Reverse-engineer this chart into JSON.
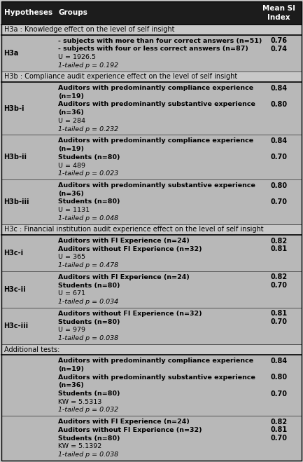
{
  "figsize": [
    4.33,
    6.59
  ],
  "dpi": 100,
  "header_bg": "#1c1c1c",
  "section_bg": "#c8c8c8",
  "data_bg": "#b8b8b8",
  "fig_bg": "#c8c8c8",
  "rows": [
    {
      "type": "header",
      "col1": "Hypotheses",
      "col2": "Groups",
      "col3": "Mean SI\nIndex"
    },
    {
      "type": "section",
      "text": "H3a : Knowledge effect on the level of self insight"
    },
    {
      "type": "data",
      "hyp": "H3a",
      "lines": [
        [
          "- subjects with more than four correct answers (n=51)",
          true,
          false
        ],
        [
          "- subjects with four or less correct answers (n=87)",
          true,
          false
        ],
        [
          "U = 1926.5",
          false,
          false
        ],
        [
          "1-tailed p = 0.192",
          false,
          true
        ]
      ],
      "values": [
        "0.76",
        "0.74",
        "",
        ""
      ]
    },
    {
      "type": "section",
      "text": "H3b : Compliance audit experience effect on the level of self insight"
    },
    {
      "type": "data",
      "hyp": "H3b-i",
      "lines": [
        [
          "Auditors with predominantly compliance experience",
          true,
          false
        ],
        [
          "(n=19)",
          true,
          false
        ],
        [
          "Auditors with predominantly substantive experience",
          true,
          false
        ],
        [
          "(n=36)",
          true,
          false
        ],
        [
          "U = 284",
          false,
          false
        ],
        [
          "1-tailed p = 0.232",
          false,
          true
        ]
      ],
      "values": [
        "0.84",
        "",
        "0.80",
        "",
        "",
        ""
      ]
    },
    {
      "type": "data",
      "hyp": "H3b-ii",
      "lines": [
        [
          "Auditors with predominantly compliance experience",
          true,
          false
        ],
        [
          "(n=19)",
          true,
          false
        ],
        [
          "Students (n=80)",
          true,
          false
        ],
        [
          "U = 489",
          false,
          false
        ],
        [
          "1-tailed p = 0.023",
          false,
          true
        ]
      ],
      "values": [
        "0.84",
        "",
        "0.70",
        "",
        ""
      ]
    },
    {
      "type": "data",
      "hyp": "H3b-iii",
      "lines": [
        [
          "Auditors with predominantly substantive experience",
          true,
          false
        ],
        [
          "(n=36)",
          true,
          false
        ],
        [
          "Students (n=80)",
          true,
          false
        ],
        [
          "U = 1131",
          false,
          false
        ],
        [
          "1-tailed p = 0.048",
          false,
          true
        ]
      ],
      "values": [
        "0.80",
        "",
        "0.70",
        "",
        ""
      ]
    },
    {
      "type": "section",
      "text": "H3c : Financial institution audit experience effect on the level of self insight"
    },
    {
      "type": "data",
      "hyp": "H3c-i",
      "lines": [
        [
          "Auditors with FI Experience (n=24)",
          true,
          false
        ],
        [
          "Auditors without FI Experience (n=32)",
          true,
          false
        ],
        [
          "U = 365",
          false,
          false
        ],
        [
          "1-tailed p = 0.478",
          false,
          true
        ]
      ],
      "values": [
        "0.82",
        "0.81",
        "",
        ""
      ]
    },
    {
      "type": "data",
      "hyp": "H3c-ii",
      "lines": [
        [
          "Auditors with FI Experience (n=24)",
          true,
          false
        ],
        [
          "Students (n=80)",
          true,
          false
        ],
        [
          "U = 671",
          false,
          false
        ],
        [
          "1-tailed p = 0.034",
          false,
          true
        ]
      ],
      "values": [
        "0.82",
        "0.70",
        "",
        ""
      ]
    },
    {
      "type": "data",
      "hyp": "H3c-iii",
      "lines": [
        [
          "Auditors without FI Experience (n=32)",
          true,
          false
        ],
        [
          "Students (n=80)",
          true,
          false
        ],
        [
          "U = 979",
          false,
          false
        ],
        [
          "1-tailed p = 0.038",
          false,
          true
        ]
      ],
      "values": [
        "0.81",
        "0.70",
        "",
        ""
      ]
    },
    {
      "type": "section",
      "text": "Additional tests:"
    },
    {
      "type": "data",
      "hyp": "",
      "lines": [
        [
          "Auditors with predominantly compliance experience",
          true,
          false
        ],
        [
          "(n=19)",
          true,
          false
        ],
        [
          "Auditors with predominantly substantive experience",
          true,
          false
        ],
        [
          "(n=36)",
          true,
          false
        ],
        [
          "Students (n=80)",
          true,
          false
        ],
        [
          "KW = 5.5313",
          false,
          false
        ],
        [
          "1-tailed p = 0.032",
          false,
          true
        ]
      ],
      "values": [
        "0.84",
        "",
        "0.80",
        "",
        "0.70",
        "",
        ""
      ]
    },
    {
      "type": "data",
      "hyp": "",
      "lines": [
        [
          "Auditors with FI Experience (n=24)",
          true,
          false
        ],
        [
          "Auditors without FI Experience (n=32)",
          true,
          false
        ],
        [
          "Students (n=80)",
          true,
          false
        ],
        [
          "KW = 5.1392",
          false,
          false
        ],
        [
          "1-tailed p = 0.038",
          false,
          true
        ]
      ],
      "values": [
        "0.82",
        "0.81",
        "0.70",
        "",
        ""
      ]
    }
  ]
}
